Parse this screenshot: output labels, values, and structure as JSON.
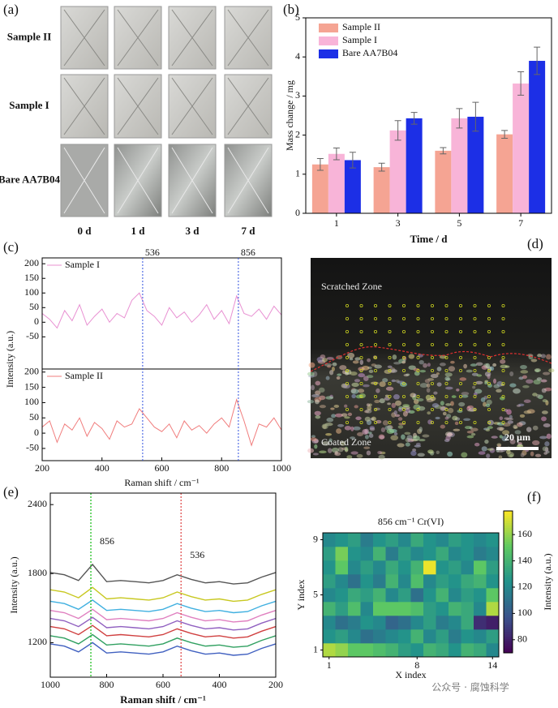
{
  "chart_data": [
    {
      "type": "image-grid",
      "label": "(a)",
      "rows": [
        "Sample II",
        "Sample I",
        "Bare AA7B04"
      ],
      "columns": [
        "0 d",
        "1 d",
        "3 d",
        "7 d"
      ]
    },
    {
      "type": "bar",
      "label": "(b)",
      "categories": [
        "1",
        "3",
        "5",
        "7"
      ],
      "series": [
        {
          "name": "Sample II",
          "color": "#f5a493",
          "values": [
            1.25,
            1.18,
            1.6,
            2.02
          ],
          "errors": [
            0.15,
            0.1,
            0.08,
            0.1
          ]
        },
        {
          "name": "Sample I",
          "color": "#f8b4d8",
          "values": [
            1.52,
            2.12,
            2.43,
            3.32
          ],
          "errors": [
            0.15,
            0.25,
            0.25,
            0.3
          ]
        },
        {
          "name": "Bare AA7B04",
          "color": "#1c2fe6",
          "values": [
            1.36,
            2.43,
            2.47,
            3.9
          ],
          "errors": [
            0.2,
            0.15,
            0.37,
            0.35
          ]
        }
      ],
      "ylim": [
        0,
        5
      ],
      "yticks": [
        0,
        1,
        2,
        3,
        4,
        5
      ],
      "xlabel": "Time / d",
      "ylabel": "Mass change / mg",
      "legend": "upper left"
    },
    {
      "type": "stacked-lines",
      "label": "(c)",
      "x": [
        200,
        225,
        250,
        275,
        300,
        325,
        350,
        375,
        400,
        425,
        450,
        475,
        500,
        525,
        550,
        575,
        600,
        625,
        650,
        675,
        700,
        725,
        750,
        775,
        800,
        825,
        850,
        875,
        900,
        925,
        950,
        975,
        1000
      ],
      "xlim": [
        200,
        1000
      ],
      "xticks": [
        200,
        400,
        600,
        800,
        1000
      ],
      "xlabel": "Raman shift / cm⁻¹",
      "ylabel": "Intensity (a.u.)",
      "vlines": [
        536,
        856
      ],
      "subplots": [
        {
          "ylim": [
            -160,
            220
          ],
          "yticks": [
            -50,
            0,
            50,
            100,
            150,
            200
          ],
          "series": [
            {
              "name": "Sample I",
              "color": "#e890d2",
              "values": [
                30,
                10,
                -20,
                40,
                5,
                60,
                -10,
                20,
                45,
                0,
                30,
                15,
                75,
                100,
                40,
                20,
                -10,
                50,
                15,
                35,
                0,
                25,
                60,
                10,
                40,
                -5,
                90,
                30,
                20,
                45,
                10,
                55,
                25
              ]
            }
          ]
        },
        {
          "ylim": [
            -90,
            210
          ],
          "yticks": [
            -50,
            0,
            50,
            100,
            150,
            200
          ],
          "series": [
            {
              "name": "Sample II",
              "color": "#f07c7c",
              "values": [
                20,
                40,
                -30,
                30,
                10,
                50,
                -10,
                35,
                15,
                -20,
                40,
                20,
                30,
                80,
                50,
                20,
                5,
                30,
                -15,
                40,
                10,
                25,
                0,
                30,
                50,
                20,
                110,
                40,
                -40,
                30,
                20,
                50,
                10
              ]
            }
          ]
        }
      ]
    },
    {
      "type": "micrograph",
      "label": "(d)",
      "annotations": [
        "Scratched Zone",
        "Coated Zone"
      ],
      "scalebar": "20 µm"
    },
    {
      "type": "line",
      "label": "(e)",
      "x": [
        200,
        250,
        300,
        350,
        400,
        450,
        500,
        550,
        600,
        650,
        700,
        750,
        800,
        850,
        900,
        950,
        1000
      ],
      "xlim": [
        1000,
        200
      ],
      "xticks": [
        1000,
        800,
        600,
        400,
        200
      ],
      "ylim": [
        900,
        2500
      ],
      "yticks": [
        1200,
        1800,
        2400
      ],
      "xlabel": "Raman shift / cm⁻¹",
      "ylabel": "Intensity (a.u.)",
      "vlines": [
        856,
        536
      ],
      "vline_colors": [
        "#22c022",
        "#e05050"
      ],
      "series": [
        {
          "color": "#555555",
          "values": [
            1810,
            1770,
            1720,
            1710,
            1730,
            1720,
            1750,
            1790,
            1740,
            1720,
            1730,
            1740,
            1730,
            1880,
            1740,
            1790,
            1810
          ]
        },
        {
          "color": "#c8c820",
          "values": [
            1660,
            1620,
            1570,
            1560,
            1580,
            1570,
            1600,
            1640,
            1590,
            1570,
            1580,
            1590,
            1580,
            1680,
            1590,
            1640,
            1660
          ]
        },
        {
          "color": "#40b0e0",
          "values": [
            1560,
            1520,
            1470,
            1460,
            1480,
            1470,
            1500,
            1540,
            1490,
            1470,
            1480,
            1490,
            1480,
            1570,
            1490,
            1540,
            1560
          ]
        },
        {
          "color": "#e080c0",
          "values": [
            1480,
            1440,
            1390,
            1380,
            1400,
            1390,
            1420,
            1460,
            1410,
            1390,
            1400,
            1410,
            1400,
            1490,
            1410,
            1460,
            1480
          ]
        },
        {
          "color": "#9060c0",
          "values": [
            1410,
            1370,
            1320,
            1310,
            1330,
            1320,
            1350,
            1390,
            1340,
            1320,
            1330,
            1340,
            1330,
            1420,
            1340,
            1390,
            1410
          ]
        },
        {
          "color": "#d04040",
          "values": [
            1340,
            1300,
            1250,
            1240,
            1260,
            1250,
            1280,
            1320,
            1270,
            1250,
            1260,
            1270,
            1260,
            1350,
            1270,
            1320,
            1340
          ]
        },
        {
          "color": "#30a060",
          "values": [
            1260,
            1220,
            1170,
            1160,
            1180,
            1170,
            1200,
            1240,
            1190,
            1170,
            1180,
            1190,
            1180,
            1270,
            1190,
            1240,
            1260
          ]
        },
        {
          "color": "#4060c0",
          "values": [
            1190,
            1150,
            1100,
            1090,
            1110,
            1100,
            1130,
            1170,
            1120,
            1100,
            1110,
            1120,
            1110,
            1200,
            1120,
            1170,
            1190
          ]
        }
      ]
    },
    {
      "type": "heatmap",
      "label": "(f)",
      "title": "856 cm⁻¹ Cr(VI)",
      "colormap": "viridis",
      "xlabel": "X index",
      "ylabel": "Y index",
      "xlim": [
        0.5,
        14.5
      ],
      "ylim": [
        0.5,
        9.5
      ],
      "xticks": [
        1,
        8,
        14
      ],
      "yticks": [
        1,
        5,
        9
      ],
      "zlim": [
        70,
        178
      ],
      "zticks": [
        80,
        100,
        120,
        140,
        160
      ],
      "zlabel": "Intensity (a.u.)",
      "z": [
        [
          165,
          160,
          150,
          150,
          145,
          140,
          130,
          125,
          140,
          135,
          125,
          140,
          135,
          120
        ],
        [
          125,
          130,
          120,
          110,
          115,
          120,
          125,
          140,
          120,
          130,
          115,
          125,
          120,
          130
        ],
        [
          120,
          110,
          115,
          125,
          120,
          105,
          110,
          120,
          130,
          115,
          120,
          135,
          85,
          80
        ],
        [
          140,
          130,
          145,
          120,
          150,
          150,
          150,
          145,
          130,
          125,
          140,
          135,
          120,
          165
        ],
        [
          120,
          125,
          135,
          130,
          140,
          120,
          130,
          110,
          125,
          140,
          120,
          130,
          125,
          150
        ],
        [
          130,
          120,
          110,
          125,
          115,
          140,
          120,
          145,
          120,
          130,
          125,
          135,
          140,
          125
        ],
        [
          125,
          150,
          120,
          130,
          120,
          135,
          125,
          140,
          175,
          125,
          130,
          120,
          150,
          130
        ],
        [
          130,
          155,
          125,
          120,
          140,
          115,
          130,
          120,
          125,
          135,
          120,
          125,
          115,
          120
        ],
        [
          120,
          125,
          130,
          115,
          125,
          130,
          120,
          135,
          125,
          120,
          130,
          125,
          120,
          125
        ]
      ]
    }
  ],
  "watermark": "公众号 · 腐蚀科学"
}
